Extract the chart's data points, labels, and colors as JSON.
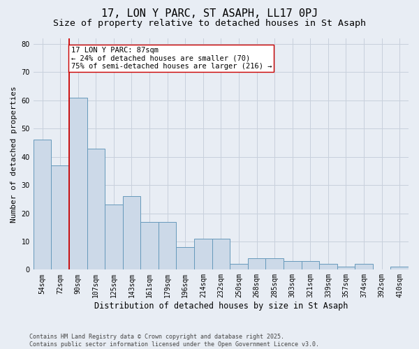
{
  "title": "17, LON Y PARC, ST ASAPH, LL17 0PJ",
  "subtitle": "Size of property relative to detached houses in St Asaph",
  "xlabel": "Distribution of detached houses by size in St Asaph",
  "ylabel": "Number of detached properties",
  "bar_labels": [
    "54sqm",
    "72sqm",
    "90sqm",
    "107sqm",
    "125sqm",
    "143sqm",
    "161sqm",
    "179sqm",
    "196sqm",
    "214sqm",
    "232sqm",
    "250sqm",
    "268sqm",
    "285sqm",
    "303sqm",
    "321sqm",
    "339sqm",
    "357sqm",
    "374sqm",
    "392sqm",
    "410sqm"
  ],
  "bar_values": [
    46,
    37,
    61,
    43,
    23,
    26,
    17,
    17,
    8,
    11,
    11,
    2,
    4,
    4,
    3,
    3,
    2,
    1,
    2,
    0,
    1
  ],
  "bar_color": "#ccd9e8",
  "bar_edge_color": "#6699bb",
  "grid_color": "#c8d0dc",
  "background_color": "#e8edf4",
  "annotation_text": "17 LON Y PARC: 87sqm\n← 24% of detached houses are smaller (70)\n75% of semi-detached houses are larger (216) →",
  "vline_x": 1.5,
  "vline_color": "#cc0000",
  "annotation_box_color": "#ffffff",
  "annotation_box_edge": "#cc0000",
  "ylim": [
    0,
    82
  ],
  "yticks": [
    0,
    10,
    20,
    30,
    40,
    50,
    60,
    70,
    80
  ],
  "footnote": "Contains HM Land Registry data © Crown copyright and database right 2025.\nContains public sector information licensed under the Open Government Licence v3.0.",
  "title_fontsize": 11,
  "subtitle_fontsize": 9.5,
  "ylabel_fontsize": 8,
  "xlabel_fontsize": 8.5,
  "tick_fontsize": 7,
  "annotation_fontsize": 7.5,
  "footnote_fontsize": 6
}
